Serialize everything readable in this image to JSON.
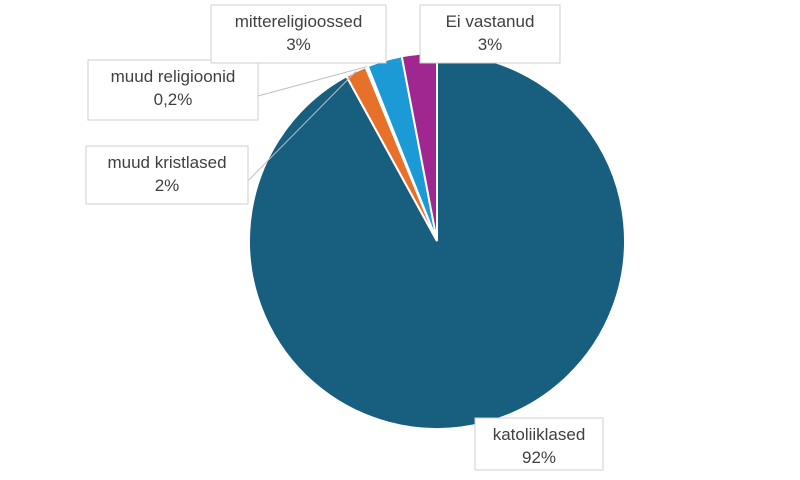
{
  "chart_data": {
    "type": "pie",
    "title": "",
    "start_angle_deg": 0,
    "slices": [
      {
        "name": "katoliiklased",
        "value": 92,
        "label_value": "92%",
        "color": "#175e7f"
      },
      {
        "name": "muud kristlased",
        "value": 1.8,
        "label_value": "2%",
        "color": "#e8712a"
      },
      {
        "name": "muud religioonid",
        "value": 0.2,
        "label_value": "0,2%",
        "color": "#ffffff"
      },
      {
        "name": "mittereligioossed",
        "value": 3,
        "label_value": "3%",
        "color": "#1c9ad6"
      },
      {
        "name": "Ei vastanud",
        "value": 3,
        "label_value": "3%",
        "color": "#a0278f"
      }
    ],
    "legend": "none",
    "data_labels": "callouts"
  }
}
